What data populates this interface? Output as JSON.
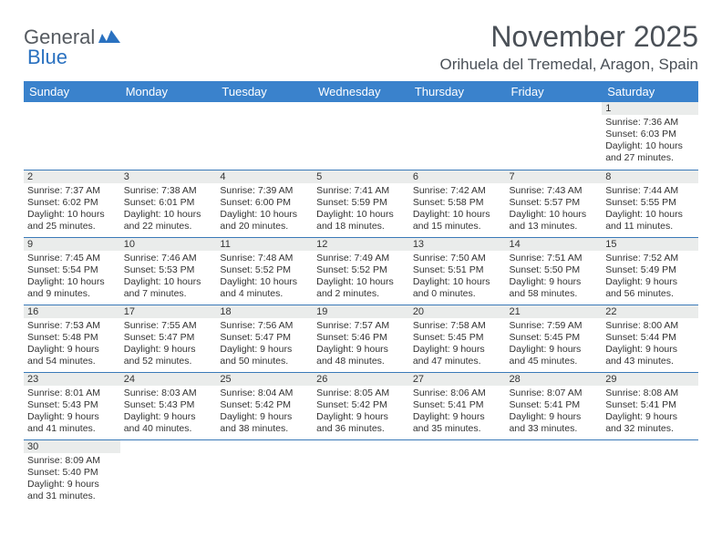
{
  "logo": {
    "text1": "General",
    "text2": "Blue"
  },
  "title": "November 2025",
  "location": "Orihuela del Tremedal, Aragon, Spain",
  "headers": [
    "Sunday",
    "Monday",
    "Tuesday",
    "Wednesday",
    "Thursday",
    "Friday",
    "Saturday"
  ],
  "colors": {
    "header_bg": "#3a82cc",
    "header_text": "#ffffff",
    "daynum_bg": "#eaeceb",
    "border": "#3a7ab8",
    "title_color": "#4a5057",
    "logo_gray": "#555a60",
    "logo_blue": "#2a71c0"
  },
  "weeks": [
    [
      null,
      null,
      null,
      null,
      null,
      null,
      {
        "n": "1",
        "sr": "Sunrise: 7:36 AM",
        "ss": "Sunset: 6:03 PM",
        "d1": "Daylight: 10 hours",
        "d2": "and 27 minutes."
      }
    ],
    [
      {
        "n": "2",
        "sr": "Sunrise: 7:37 AM",
        "ss": "Sunset: 6:02 PM",
        "d1": "Daylight: 10 hours",
        "d2": "and 25 minutes."
      },
      {
        "n": "3",
        "sr": "Sunrise: 7:38 AM",
        "ss": "Sunset: 6:01 PM",
        "d1": "Daylight: 10 hours",
        "d2": "and 22 minutes."
      },
      {
        "n": "4",
        "sr": "Sunrise: 7:39 AM",
        "ss": "Sunset: 6:00 PM",
        "d1": "Daylight: 10 hours",
        "d2": "and 20 minutes."
      },
      {
        "n": "5",
        "sr": "Sunrise: 7:41 AM",
        "ss": "Sunset: 5:59 PM",
        "d1": "Daylight: 10 hours",
        "d2": "and 18 minutes."
      },
      {
        "n": "6",
        "sr": "Sunrise: 7:42 AM",
        "ss": "Sunset: 5:58 PM",
        "d1": "Daylight: 10 hours",
        "d2": "and 15 minutes."
      },
      {
        "n": "7",
        "sr": "Sunrise: 7:43 AM",
        "ss": "Sunset: 5:57 PM",
        "d1": "Daylight: 10 hours",
        "d2": "and 13 minutes."
      },
      {
        "n": "8",
        "sr": "Sunrise: 7:44 AM",
        "ss": "Sunset: 5:55 PM",
        "d1": "Daylight: 10 hours",
        "d2": "and 11 minutes."
      }
    ],
    [
      {
        "n": "9",
        "sr": "Sunrise: 7:45 AM",
        "ss": "Sunset: 5:54 PM",
        "d1": "Daylight: 10 hours",
        "d2": "and 9 minutes."
      },
      {
        "n": "10",
        "sr": "Sunrise: 7:46 AM",
        "ss": "Sunset: 5:53 PM",
        "d1": "Daylight: 10 hours",
        "d2": "and 7 minutes."
      },
      {
        "n": "11",
        "sr": "Sunrise: 7:48 AM",
        "ss": "Sunset: 5:52 PM",
        "d1": "Daylight: 10 hours",
        "d2": "and 4 minutes."
      },
      {
        "n": "12",
        "sr": "Sunrise: 7:49 AM",
        "ss": "Sunset: 5:52 PM",
        "d1": "Daylight: 10 hours",
        "d2": "and 2 minutes."
      },
      {
        "n": "13",
        "sr": "Sunrise: 7:50 AM",
        "ss": "Sunset: 5:51 PM",
        "d1": "Daylight: 10 hours",
        "d2": "and 0 minutes."
      },
      {
        "n": "14",
        "sr": "Sunrise: 7:51 AM",
        "ss": "Sunset: 5:50 PM",
        "d1": "Daylight: 9 hours",
        "d2": "and 58 minutes."
      },
      {
        "n": "15",
        "sr": "Sunrise: 7:52 AM",
        "ss": "Sunset: 5:49 PM",
        "d1": "Daylight: 9 hours",
        "d2": "and 56 minutes."
      }
    ],
    [
      {
        "n": "16",
        "sr": "Sunrise: 7:53 AM",
        "ss": "Sunset: 5:48 PM",
        "d1": "Daylight: 9 hours",
        "d2": "and 54 minutes."
      },
      {
        "n": "17",
        "sr": "Sunrise: 7:55 AM",
        "ss": "Sunset: 5:47 PM",
        "d1": "Daylight: 9 hours",
        "d2": "and 52 minutes."
      },
      {
        "n": "18",
        "sr": "Sunrise: 7:56 AM",
        "ss": "Sunset: 5:47 PM",
        "d1": "Daylight: 9 hours",
        "d2": "and 50 minutes."
      },
      {
        "n": "19",
        "sr": "Sunrise: 7:57 AM",
        "ss": "Sunset: 5:46 PM",
        "d1": "Daylight: 9 hours",
        "d2": "and 48 minutes."
      },
      {
        "n": "20",
        "sr": "Sunrise: 7:58 AM",
        "ss": "Sunset: 5:45 PM",
        "d1": "Daylight: 9 hours",
        "d2": "and 47 minutes."
      },
      {
        "n": "21",
        "sr": "Sunrise: 7:59 AM",
        "ss": "Sunset: 5:45 PM",
        "d1": "Daylight: 9 hours",
        "d2": "and 45 minutes."
      },
      {
        "n": "22",
        "sr": "Sunrise: 8:00 AM",
        "ss": "Sunset: 5:44 PM",
        "d1": "Daylight: 9 hours",
        "d2": "and 43 minutes."
      }
    ],
    [
      {
        "n": "23",
        "sr": "Sunrise: 8:01 AM",
        "ss": "Sunset: 5:43 PM",
        "d1": "Daylight: 9 hours",
        "d2": "and 41 minutes."
      },
      {
        "n": "24",
        "sr": "Sunrise: 8:03 AM",
        "ss": "Sunset: 5:43 PM",
        "d1": "Daylight: 9 hours",
        "d2": "and 40 minutes."
      },
      {
        "n": "25",
        "sr": "Sunrise: 8:04 AM",
        "ss": "Sunset: 5:42 PM",
        "d1": "Daylight: 9 hours",
        "d2": "and 38 minutes."
      },
      {
        "n": "26",
        "sr": "Sunrise: 8:05 AM",
        "ss": "Sunset: 5:42 PM",
        "d1": "Daylight: 9 hours",
        "d2": "and 36 minutes."
      },
      {
        "n": "27",
        "sr": "Sunrise: 8:06 AM",
        "ss": "Sunset: 5:41 PM",
        "d1": "Daylight: 9 hours",
        "d2": "and 35 minutes."
      },
      {
        "n": "28",
        "sr": "Sunrise: 8:07 AM",
        "ss": "Sunset: 5:41 PM",
        "d1": "Daylight: 9 hours",
        "d2": "and 33 minutes."
      },
      {
        "n": "29",
        "sr": "Sunrise: 8:08 AM",
        "ss": "Sunset: 5:41 PM",
        "d1": "Daylight: 9 hours",
        "d2": "and 32 minutes."
      }
    ],
    [
      {
        "n": "30",
        "sr": "Sunrise: 8:09 AM",
        "ss": "Sunset: 5:40 PM",
        "d1": "Daylight: 9 hours",
        "d2": "and 31 minutes."
      },
      null,
      null,
      null,
      null,
      null,
      null
    ]
  ]
}
